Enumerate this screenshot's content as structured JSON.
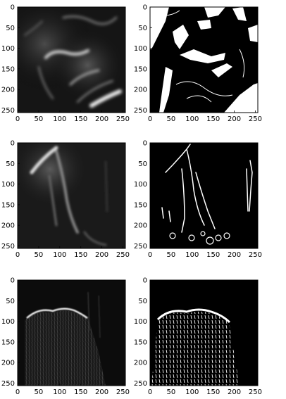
{
  "figure": {
    "grid": "3x2",
    "description_free": true
  },
  "axes": {
    "x_ticks": [
      "0",
      "50",
      "100",
      "150",
      "200",
      "250"
    ],
    "y_ticks": [
      "0",
      "50",
      "100",
      "150",
      "200",
      "250"
    ]
  },
  "panels": [
    {
      "id": "r1c1",
      "kind": "grayscale-heatmap"
    },
    {
      "id": "r1c2",
      "kind": "binary-mask"
    },
    {
      "id": "r2c1",
      "kind": "grayscale-heatmap"
    },
    {
      "id": "r2c2",
      "kind": "binary-mask"
    },
    {
      "id": "r3c1",
      "kind": "grayscale-heatmap"
    },
    {
      "id": "r3c2",
      "kind": "binary-mask"
    }
  ],
  "colors": {
    "background": "#000000",
    "foreground": "#ffffff",
    "frame": "#000000"
  }
}
